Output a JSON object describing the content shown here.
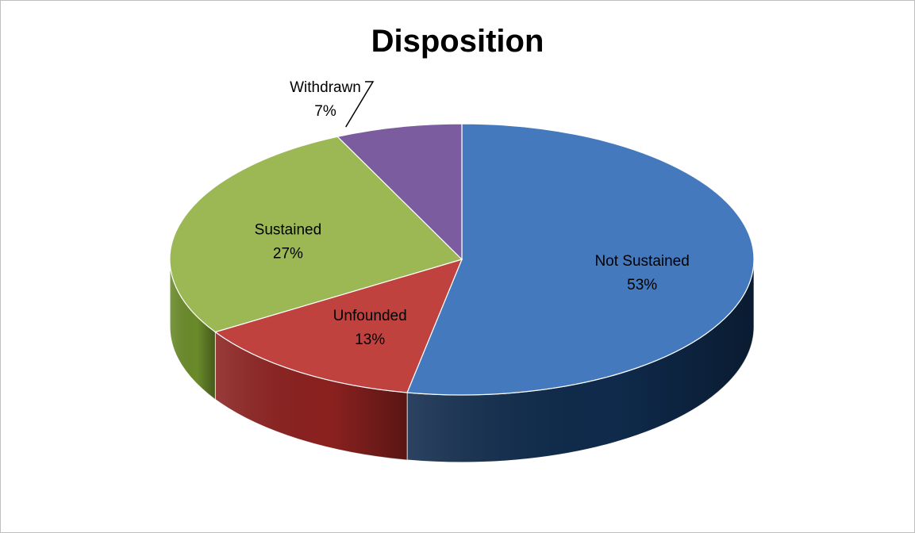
{
  "chart_data": {
    "type": "pie",
    "title": "Disposition",
    "style": "3d",
    "slices": [
      {
        "name": "Not Sustained",
        "percent_label": "53%",
        "value": 53,
        "color": "#4479BD",
        "side_color": "#0F2A4B"
      },
      {
        "name": "Unfounded",
        "percent_label": "13%",
        "value": 13,
        "color": "#C0423F",
        "side_color": "#8A211F"
      },
      {
        "name": "Sustained",
        "percent_label": "27%",
        "value": 27,
        "color": "#9BB854",
        "side_color": "#6A8A2A"
      },
      {
        "name": "Withdrawn",
        "percent_label": "7%",
        "value": 7,
        "color": "#7B5C9E",
        "side_color": "#4E3470"
      }
    ]
  }
}
